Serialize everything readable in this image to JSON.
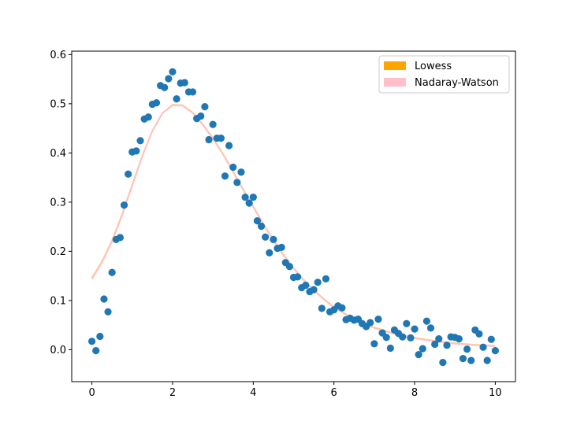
{
  "chart_data": {
    "type": "scatter",
    "title": "",
    "xlabel": "",
    "ylabel": "",
    "xlim": [
      -0.5,
      10.5
    ],
    "ylim": [
      -0.065,
      0.607
    ],
    "grid": false,
    "x_ticks": [
      0,
      2,
      4,
      6,
      8,
      10
    ],
    "x_tick_labels": [
      "0",
      "2",
      "4",
      "6",
      "8",
      "10"
    ],
    "y_ticks": [
      0.0,
      0.1,
      0.2,
      0.3,
      0.4,
      0.5,
      0.6
    ],
    "y_tick_labels": [
      "0.0",
      "0.1",
      "0.2",
      "0.3",
      "0.4",
      "0.5",
      "0.6"
    ],
    "legend": {
      "position": "top-right",
      "entries": [
        {
          "label": "Lowess",
          "color": "#ffa500"
        },
        {
          "label": "Nadaray-Watson",
          "color": "#ffc0cb"
        }
      ]
    },
    "points": {
      "color": "#1f77b4",
      "x": [
        0.0,
        0.1,
        0.2,
        0.3,
        0.4,
        0.5,
        0.6,
        0.7,
        0.8,
        0.9,
        1.0,
        1.1,
        1.2,
        1.3,
        1.4,
        1.5,
        1.6,
        1.7,
        1.8,
        1.9,
        2.0,
        2.1,
        2.2,
        2.3,
        2.4,
        2.5,
        2.6,
        2.7,
        2.8,
        2.9,
        3.0,
        3.1,
        3.2,
        3.3,
        3.4,
        3.5,
        3.6,
        3.7,
        3.8,
        3.9,
        4.0,
        4.1,
        4.2,
        4.3,
        4.4,
        4.5,
        4.6,
        4.7,
        4.8,
        4.9,
        5.0,
        5.1,
        5.2,
        5.3,
        5.4,
        5.5,
        5.6,
        5.7,
        5.8,
        5.9,
        6.0,
        6.1,
        6.2,
        6.3,
        6.4,
        6.5,
        6.6,
        6.7,
        6.8,
        6.9,
        7.0,
        7.1,
        7.2,
        7.3,
        7.4,
        7.5,
        7.6,
        7.7,
        7.8,
        7.9,
        8.0,
        8.1,
        8.2,
        8.3,
        8.4,
        8.5,
        8.6,
        8.7,
        8.8,
        8.9,
        9.0,
        9.1,
        9.2,
        9.3,
        9.4,
        9.5,
        9.6,
        9.7,
        9.8,
        9.9,
        10.0
      ],
      "y": [
        0.017,
        -0.002,
        0.027,
        0.103,
        0.077,
        0.157,
        0.224,
        0.228,
        0.294,
        0.357,
        0.402,
        0.404,
        0.425,
        0.469,
        0.473,
        0.499,
        0.502,
        0.537,
        0.533,
        0.551,
        0.565,
        0.51,
        0.542,
        0.543,
        0.524,
        0.524,
        0.47,
        0.475,
        0.494,
        0.427,
        0.458,
        0.43,
        0.43,
        0.353,
        0.415,
        0.371,
        0.34,
        0.361,
        0.31,
        0.298,
        0.31,
        0.262,
        0.251,
        0.229,
        0.197,
        0.224,
        0.206,
        0.208,
        0.177,
        0.169,
        0.147,
        0.148,
        0.126,
        0.131,
        0.118,
        0.122,
        0.137,
        0.084,
        0.144,
        0.077,
        0.081,
        0.089,
        0.085,
        0.061,
        0.064,
        0.06,
        0.062,
        0.053,
        0.047,
        0.055,
        0.012,
        0.062,
        0.034,
        0.025,
        0.003,
        0.04,
        0.033,
        0.026,
        0.053,
        0.024,
        0.042,
        -0.01,
        0.002,
        0.058,
        0.044,
        0.011,
        0.022,
        -0.026,
        0.009,
        0.026,
        0.025,
        0.022,
        -0.018,
        0.001,
        -0.022,
        0.04,
        0.032,
        0.005,
        -0.022,
        0.021,
        -0.002
      ]
    },
    "series": [
      {
        "label": "Lowess",
        "color": "#ffa500",
        "x": [
          0.0,
          0.25,
          0.5,
          0.75,
          1.0,
          1.25,
          1.5,
          1.75,
          2.0,
          2.25,
          2.5,
          2.75,
          3.0,
          3.25,
          3.5,
          3.75,
          4.0,
          4.25,
          4.5,
          4.75,
          5.0,
          5.25,
          5.5,
          5.75,
          6.0,
          6.5,
          7.0,
          7.5,
          8.0,
          8.5,
          9.0,
          9.5,
          10.0
        ],
        "y": [
          0.146,
          0.179,
          0.222,
          0.275,
          0.335,
          0.394,
          0.445,
          0.481,
          0.498,
          0.497,
          0.482,
          0.458,
          0.43,
          0.398,
          0.362,
          0.326,
          0.291,
          0.256,
          0.223,
          0.193,
          0.166,
          0.142,
          0.121,
          0.103,
          0.087,
          0.062,
          0.045,
          0.033,
          0.024,
          0.018,
          0.013,
          0.01,
          0.008
        ]
      },
      {
        "label": "Nadaray-Watson",
        "color": "#ffc0cb",
        "x": [
          0.0,
          0.25,
          0.5,
          0.75,
          1.0,
          1.25,
          1.5,
          1.75,
          2.0,
          2.25,
          2.5,
          2.75,
          3.0,
          3.25,
          3.5,
          3.75,
          4.0,
          4.25,
          4.5,
          4.75,
          5.0,
          5.25,
          5.5,
          5.75,
          6.0,
          6.5,
          7.0,
          7.5,
          8.0,
          8.5,
          9.0,
          9.5,
          10.0
        ],
        "y": [
          0.143,
          0.177,
          0.22,
          0.273,
          0.334,
          0.393,
          0.445,
          0.481,
          0.497,
          0.496,
          0.481,
          0.457,
          0.429,
          0.397,
          0.361,
          0.325,
          0.29,
          0.255,
          0.222,
          0.192,
          0.165,
          0.141,
          0.12,
          0.102,
          0.086,
          0.061,
          0.044,
          0.032,
          0.023,
          0.017,
          0.012,
          0.009,
          0.007
        ]
      }
    ]
  }
}
